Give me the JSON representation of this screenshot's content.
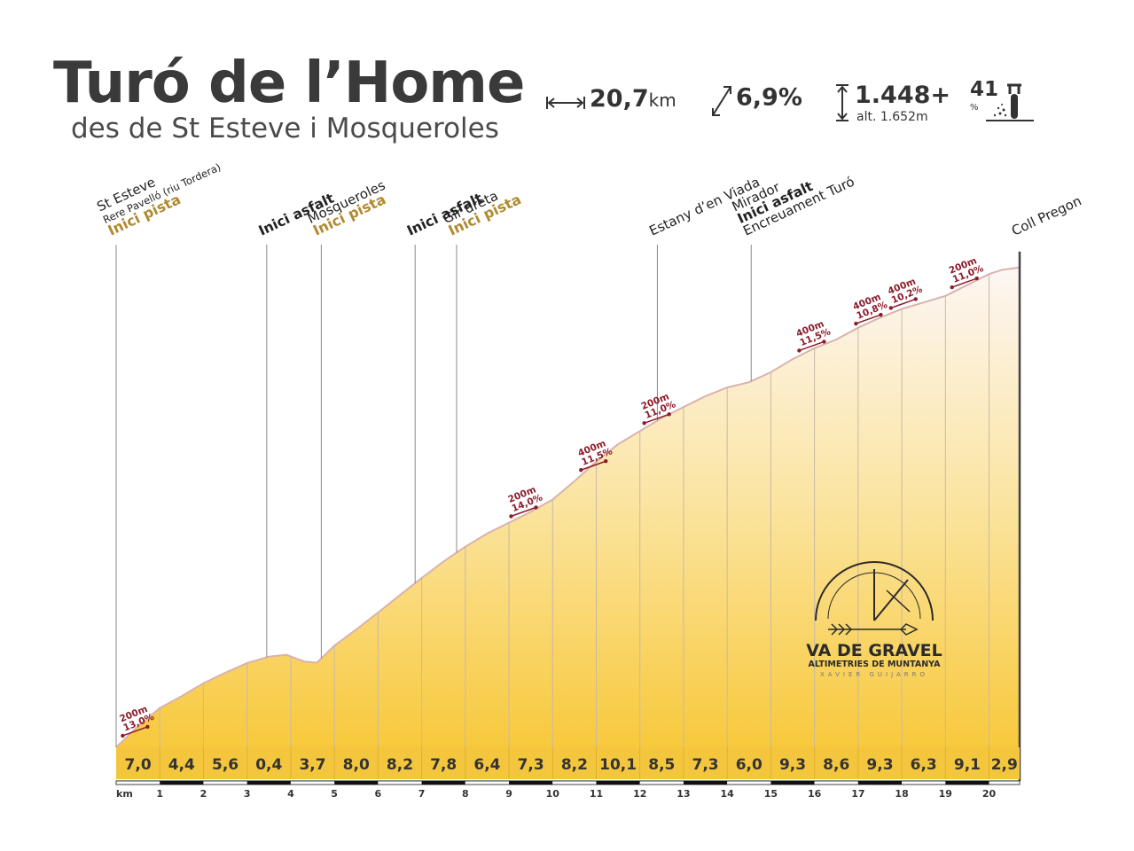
{
  "header": {
    "title": "Turó de l’Home",
    "subtitle": "des de St Esteve i Mosqueroles",
    "distance_value": "20,7",
    "distance_unit": "km",
    "avg_gradient": "6,9%",
    "elevation_gain": "1.448+",
    "max_altitude": "alt. 1.652m",
    "difficulty_value": "41",
    "difficulty_symbol": "%"
  },
  "icons": {
    "distance": "horizontal-arrow-icon",
    "gradient": "diagonal-arrow-icon",
    "elevation": "vertical-arrow-icon",
    "difficulty": "cyclist-climb-icon"
  },
  "colors": {
    "fill_bottom": "#f8c93c",
    "fill_top": "#fdf6f4",
    "label_gold": "#b08a2e",
    "label_dark": "#222222",
    "segment_marker": "#8b1c2a",
    "km_band": "#f4c63e"
  },
  "logo": {
    "name": "VA DE GRAVEL",
    "tagline": "ALTIMETRIES DE MUNTANYA",
    "author": "XAVIER GUIJARRO"
  },
  "chart_data": {
    "type": "area",
    "xlabel": "km",
    "x_ticks": [
      "1",
      "2",
      "3",
      "4",
      "5",
      "6",
      "7",
      "8",
      "9",
      "10",
      "11",
      "12",
      "13",
      "14",
      "15",
      "16",
      "17",
      "18",
      "19",
      "20"
    ],
    "xlim": [
      0,
      20.7
    ],
    "segment_gradients": [
      "7,0",
      "4,4",
      "5,6",
      "0,4",
      "3,7",
      "8,0",
      "8,2",
      "7,8",
      "6,4",
      "7,3",
      "8,2",
      "10,1",
      "8,5",
      "7,3",
      "6,0",
      "9,3",
      "8,6",
      "9,3",
      "6,3",
      "9,1",
      "2,9"
    ],
    "profile_km": [
      0,
      0.5,
      1,
      1.5,
      2,
      2.5,
      3,
      3.5,
      3.9,
      4.3,
      4.6,
      5,
      5.5,
      6,
      6.5,
      7,
      7.5,
      8,
      8.5,
      9,
      9.5,
      10,
      10.5,
      11,
      11.5,
      12,
      12.5,
      13,
      13.5,
      14,
      14.5,
      15,
      15.5,
      16,
      16.5,
      17,
      17.5,
      18,
      18.5,
      19,
      19.5,
      20,
      20.3,
      20.7
    ],
    "profile_index": [
      0,
      0.048,
      0.09,
      0.117,
      0.147,
      0.171,
      0.193,
      0.208,
      0.212,
      0.197,
      0.194,
      0.233,
      0.27,
      0.309,
      0.349,
      0.388,
      0.426,
      0.46,
      0.49,
      0.515,
      0.54,
      0.568,
      0.61,
      0.655,
      0.695,
      0.725,
      0.755,
      0.78,
      0.805,
      0.825,
      0.837,
      0.86,
      0.89,
      0.915,
      0.935,
      0.962,
      0.985,
      1.005,
      1.02,
      1.035,
      1.06,
      1.085,
      1.095,
      1.1
    ],
    "waypoints": [
      {
        "km": 0,
        "lines": [
          {
            "text": "St Esteve",
            "style": "normal"
          },
          {
            "text": "Rere Pavelló (riu Tordera)",
            "style": "small"
          },
          {
            "text": "Inici pista",
            "style": "gold"
          }
        ]
      },
      {
        "km": 3.45,
        "lines": [
          {
            "text": "Inici asfalt",
            "style": "bold"
          }
        ]
      },
      {
        "km": 4.7,
        "lines": [
          {
            "text": "Mosqueroles",
            "style": "normal"
          },
          {
            "text": "Inici pista",
            "style": "gold"
          }
        ]
      },
      {
        "km": 6.85,
        "lines": [
          {
            "text": "Inici asfalt",
            "style": "bold"
          }
        ]
      },
      {
        "km": 7.8,
        "lines": [
          {
            "text": "Gir dreta",
            "style": "normal"
          },
          {
            "text": "Inici pista",
            "style": "gold"
          }
        ]
      },
      {
        "km": 12.4,
        "lines": [
          {
            "text": "Estany d’en Viada",
            "style": "normal"
          }
        ]
      },
      {
        "km": 14.55,
        "lines": [
          {
            "text": "Mirador",
            "style": "normal"
          },
          {
            "text": "Inici asfalt",
            "style": "bold"
          },
          {
            "text": "Encreuament Turó",
            "style": "normal"
          }
        ]
      },
      {
        "km": 20.7,
        "lines": [
          {
            "text": "Coll Pregon",
            "style": "normal"
          }
        ]
      }
    ],
    "steep_segments": [
      {
        "km": 0.15,
        "length": "200m",
        "gradient": "13,0%"
      },
      {
        "km": 9.05,
        "length": "200m",
        "gradient": "14,0%"
      },
      {
        "km": 10.65,
        "length": "400m",
        "gradient": "11,5%"
      },
      {
        "km": 12.1,
        "length": "200m",
        "gradient": "11,0%"
      },
      {
        "km": 15.65,
        "length": "400m",
        "gradient": "11,5%"
      },
      {
        "km": 16.95,
        "length": "400m",
        "gradient": "10,8%"
      },
      {
        "km": 17.75,
        "length": "400m",
        "gradient": "10,2%"
      },
      {
        "km": 19.15,
        "length": "200m",
        "gradient": "11,0%"
      }
    ]
  }
}
